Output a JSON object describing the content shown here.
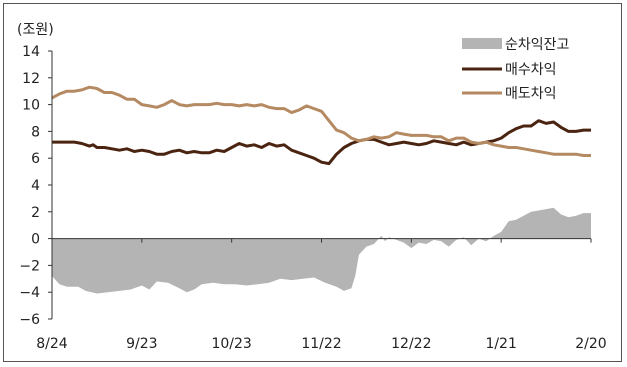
{
  "chart_data": {
    "type": "line",
    "unit_label": "(조원)",
    "y_ticks": [
      "14",
      "12",
      "10",
      "8",
      "6",
      "4",
      "2",
      "0",
      "−2",
      "−4",
      "−6"
    ],
    "ylim": [
      -6,
      14
    ],
    "x_ticks": [
      "8/24",
      "9/23",
      "10/23",
      "11/22",
      "12/22",
      "1/21",
      "2/20"
    ],
    "grid": false,
    "legend_position": "top-right",
    "colors": {
      "net": "#b4b4b4",
      "buy": "#4a2410",
      "sell": "#b58a62"
    },
    "series": [
      {
        "name": "순차익잔고",
        "type": "area",
        "points": [
          [
            0,
            -2.8
          ],
          [
            2,
            -3.4
          ],
          [
            4,
            -3.6
          ],
          [
            7,
            -3.6
          ],
          [
            9,
            -3.9
          ],
          [
            12,
            -4.1
          ],
          [
            15,
            -4.0
          ],
          [
            18,
            -3.9
          ],
          [
            21,
            -3.8
          ],
          [
            24,
            -3.5
          ],
          [
            26,
            -3.8
          ],
          [
            28,
            -3.2
          ],
          [
            31,
            -3.3
          ],
          [
            34,
            -3.7
          ],
          [
            36,
            -4.0
          ],
          [
            38,
            -3.8
          ],
          [
            40,
            -3.4
          ],
          [
            43,
            -3.3
          ],
          [
            46,
            -3.4
          ],
          [
            49,
            -3.4
          ],
          [
            52,
            -3.5
          ],
          [
            55,
            -3.4
          ],
          [
            58,
            -3.3
          ],
          [
            61,
            -3.0
          ],
          [
            64,
            -3.1
          ],
          [
            67,
            -3.0
          ],
          [
            70,
            -2.9
          ],
          [
            73,
            -3.3
          ],
          [
            76,
            -3.6
          ],
          [
            78,
            -3.9
          ],
          [
            80,
            -3.7
          ],
          [
            81,
            -2.8
          ],
          [
            82,
            -1.2
          ],
          [
            84,
            -0.6
          ],
          [
            86,
            -0.4
          ],
          [
            88,
            0.2
          ],
          [
            89,
            -0.2
          ],
          [
            90,
            0.1
          ],
          [
            92,
            -0.1
          ],
          [
            94,
            -0.3
          ],
          [
            96,
            -0.7
          ],
          [
            98,
            -0.3
          ],
          [
            100,
            -0.4
          ],
          [
            102,
            -0.1
          ],
          [
            104,
            -0.2
          ],
          [
            106,
            -0.6
          ],
          [
            108,
            -0.1
          ],
          [
            110,
            0.1
          ],
          [
            112,
            -0.5
          ],
          [
            114,
            0.0
          ],
          [
            116,
            -0.2
          ],
          [
            118,
            0.2
          ],
          [
            120,
            0.5
          ],
          [
            122,
            1.3
          ],
          [
            124,
            1.4
          ],
          [
            126,
            1.7
          ],
          [
            128,
            2.0
          ],
          [
            130,
            2.1
          ],
          [
            132,
            2.2
          ],
          [
            134,
            2.3
          ],
          [
            136,
            1.8
          ],
          [
            138,
            1.6
          ],
          [
            140,
            1.7
          ],
          [
            142,
            1.9
          ],
          [
            144,
            1.9
          ]
        ]
      },
      {
        "name": "매수차익",
        "type": "line",
        "points": [
          [
            0,
            7.2
          ],
          [
            4,
            7.2
          ],
          [
            6,
            7.2
          ],
          [
            8,
            7.1
          ],
          [
            10,
            6.9
          ],
          [
            11,
            7.0
          ],
          [
            12,
            6.8
          ],
          [
            14,
            6.8
          ],
          [
            16,
            6.7
          ],
          [
            18,
            6.6
          ],
          [
            20,
            6.7
          ],
          [
            22,
            6.5
          ],
          [
            24,
            6.6
          ],
          [
            26,
            6.5
          ],
          [
            28,
            6.3
          ],
          [
            30,
            6.3
          ],
          [
            32,
            6.5
          ],
          [
            34,
            6.6
          ],
          [
            36,
            6.4
          ],
          [
            38,
            6.5
          ],
          [
            40,
            6.4
          ],
          [
            42,
            6.4
          ],
          [
            44,
            6.6
          ],
          [
            46,
            6.5
          ],
          [
            48,
            6.8
          ],
          [
            50,
            7.1
          ],
          [
            52,
            6.9
          ],
          [
            54,
            7.0
          ],
          [
            56,
            6.8
          ],
          [
            58,
            7.1
          ],
          [
            60,
            6.9
          ],
          [
            62,
            7.0
          ],
          [
            64,
            6.6
          ],
          [
            66,
            6.4
          ],
          [
            68,
            6.2
          ],
          [
            70,
            6.0
          ],
          [
            72,
            5.7
          ],
          [
            74,
            5.6
          ],
          [
            76,
            6.3
          ],
          [
            78,
            6.8
          ],
          [
            80,
            7.1
          ],
          [
            82,
            7.3
          ],
          [
            84,
            7.4
          ],
          [
            86,
            7.4
          ],
          [
            88,
            7.2
          ],
          [
            90,
            7.0
          ],
          [
            92,
            7.1
          ],
          [
            94,
            7.2
          ],
          [
            96,
            7.1
          ],
          [
            98,
            7.0
          ],
          [
            100,
            7.1
          ],
          [
            102,
            7.3
          ],
          [
            104,
            7.2
          ],
          [
            106,
            7.1
          ],
          [
            108,
            7.0
          ],
          [
            110,
            7.2
          ],
          [
            112,
            7.0
          ],
          [
            114,
            7.1
          ],
          [
            116,
            7.2
          ],
          [
            118,
            7.3
          ],
          [
            120,
            7.5
          ],
          [
            122,
            7.9
          ],
          [
            124,
            8.2
          ],
          [
            126,
            8.4
          ],
          [
            128,
            8.4
          ],
          [
            130,
            8.8
          ],
          [
            132,
            8.6
          ],
          [
            134,
            8.7
          ],
          [
            136,
            8.3
          ],
          [
            138,
            8.0
          ],
          [
            140,
            8.0
          ],
          [
            142,
            8.1
          ],
          [
            144,
            8.1
          ]
        ]
      },
      {
        "name": "매도차익",
        "type": "line",
        "points": [
          [
            0,
            10.5
          ],
          [
            2,
            10.8
          ],
          [
            4,
            11.0
          ],
          [
            6,
            11.0
          ],
          [
            8,
            11.1
          ],
          [
            10,
            11.3
          ],
          [
            12,
            11.2
          ],
          [
            14,
            10.9
          ],
          [
            16,
            10.9
          ],
          [
            18,
            10.7
          ],
          [
            20,
            10.4
          ],
          [
            22,
            10.4
          ],
          [
            24,
            10.0
          ],
          [
            26,
            9.9
          ],
          [
            28,
            9.8
          ],
          [
            30,
            10.0
          ],
          [
            32,
            10.3
          ],
          [
            34,
            10.0
          ],
          [
            36,
            9.9
          ],
          [
            38,
            10.0
          ],
          [
            40,
            10.0
          ],
          [
            42,
            10.0
          ],
          [
            44,
            10.1
          ],
          [
            46,
            10.0
          ],
          [
            48,
            10.0
          ],
          [
            50,
            9.9
          ],
          [
            52,
            10.0
          ],
          [
            54,
            9.9
          ],
          [
            56,
            10.0
          ],
          [
            58,
            9.8
          ],
          [
            60,
            9.7
          ],
          [
            62,
            9.7
          ],
          [
            64,
            9.4
          ],
          [
            66,
            9.6
          ],
          [
            68,
            9.9
          ],
          [
            70,
            9.7
          ],
          [
            72,
            9.5
          ],
          [
            74,
            8.8
          ],
          [
            76,
            8.1
          ],
          [
            78,
            7.9
          ],
          [
            80,
            7.5
          ],
          [
            82,
            7.3
          ],
          [
            84,
            7.4
          ],
          [
            86,
            7.6
          ],
          [
            88,
            7.5
          ],
          [
            90,
            7.6
          ],
          [
            92,
            7.9
          ],
          [
            94,
            7.8
          ],
          [
            96,
            7.7
          ],
          [
            98,
            7.7
          ],
          [
            100,
            7.7
          ],
          [
            102,
            7.6
          ],
          [
            104,
            7.6
          ],
          [
            106,
            7.3
          ],
          [
            108,
            7.5
          ],
          [
            110,
            7.5
          ],
          [
            112,
            7.2
          ],
          [
            114,
            7.1
          ],
          [
            116,
            7.2
          ],
          [
            118,
            7.0
          ],
          [
            120,
            6.9
          ],
          [
            122,
            6.8
          ],
          [
            124,
            6.8
          ],
          [
            126,
            6.7
          ],
          [
            128,
            6.6
          ],
          [
            130,
            6.5
          ],
          [
            132,
            6.4
          ],
          [
            134,
            6.3
          ],
          [
            136,
            6.3
          ],
          [
            138,
            6.3
          ],
          [
            140,
            6.3
          ],
          [
            142,
            6.2
          ],
          [
            144,
            6.2
          ]
        ]
      }
    ]
  }
}
